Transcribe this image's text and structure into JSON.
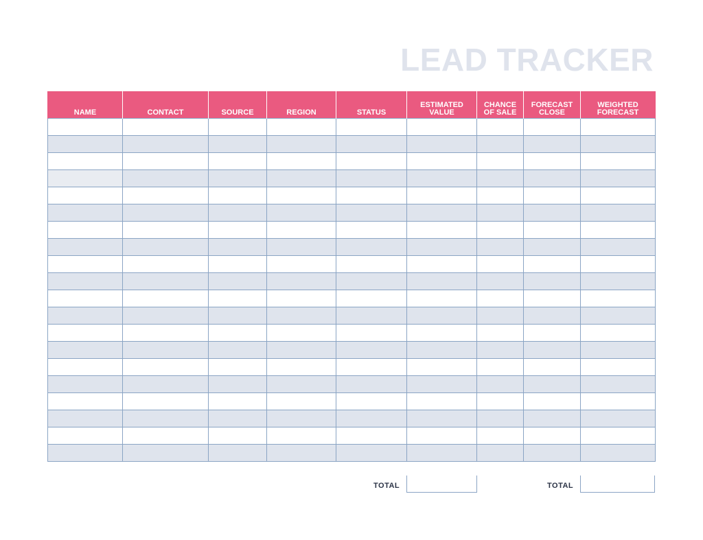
{
  "title": "LEAD TRACKER",
  "columns": [
    {
      "key": "name",
      "label": "NAME",
      "width": 109
    },
    {
      "key": "contact",
      "label": "CONTACT",
      "width": 125
    },
    {
      "key": "source",
      "label": "SOURCE",
      "width": 85
    },
    {
      "key": "region",
      "label": "REGION",
      "width": 101
    },
    {
      "key": "status",
      "label": "STATUS",
      "width": 103
    },
    {
      "key": "estimated_value",
      "label": "ESTIMATED\nVALUE",
      "width": 102
    },
    {
      "key": "chance_of_sale",
      "label": "CHANCE\nOF SALE",
      "width": 68
    },
    {
      "key": "forecast_close",
      "label": "FORECAST\nCLOSE",
      "width": 83
    },
    {
      "key": "weighted_forecast",
      "label": "WEIGHTED\nFORECAST",
      "width": 109
    }
  ],
  "row_count": 20,
  "totals": {
    "estimated_value_label": "TOTAL",
    "estimated_value": "",
    "weighted_forecast_label": "TOTAL",
    "weighted_forecast": ""
  },
  "colors": {
    "header_bg": "#ea5a80",
    "title": "#dfe3ec",
    "alt_row": "#dfe4ed",
    "grid": "#8aa4c4"
  }
}
